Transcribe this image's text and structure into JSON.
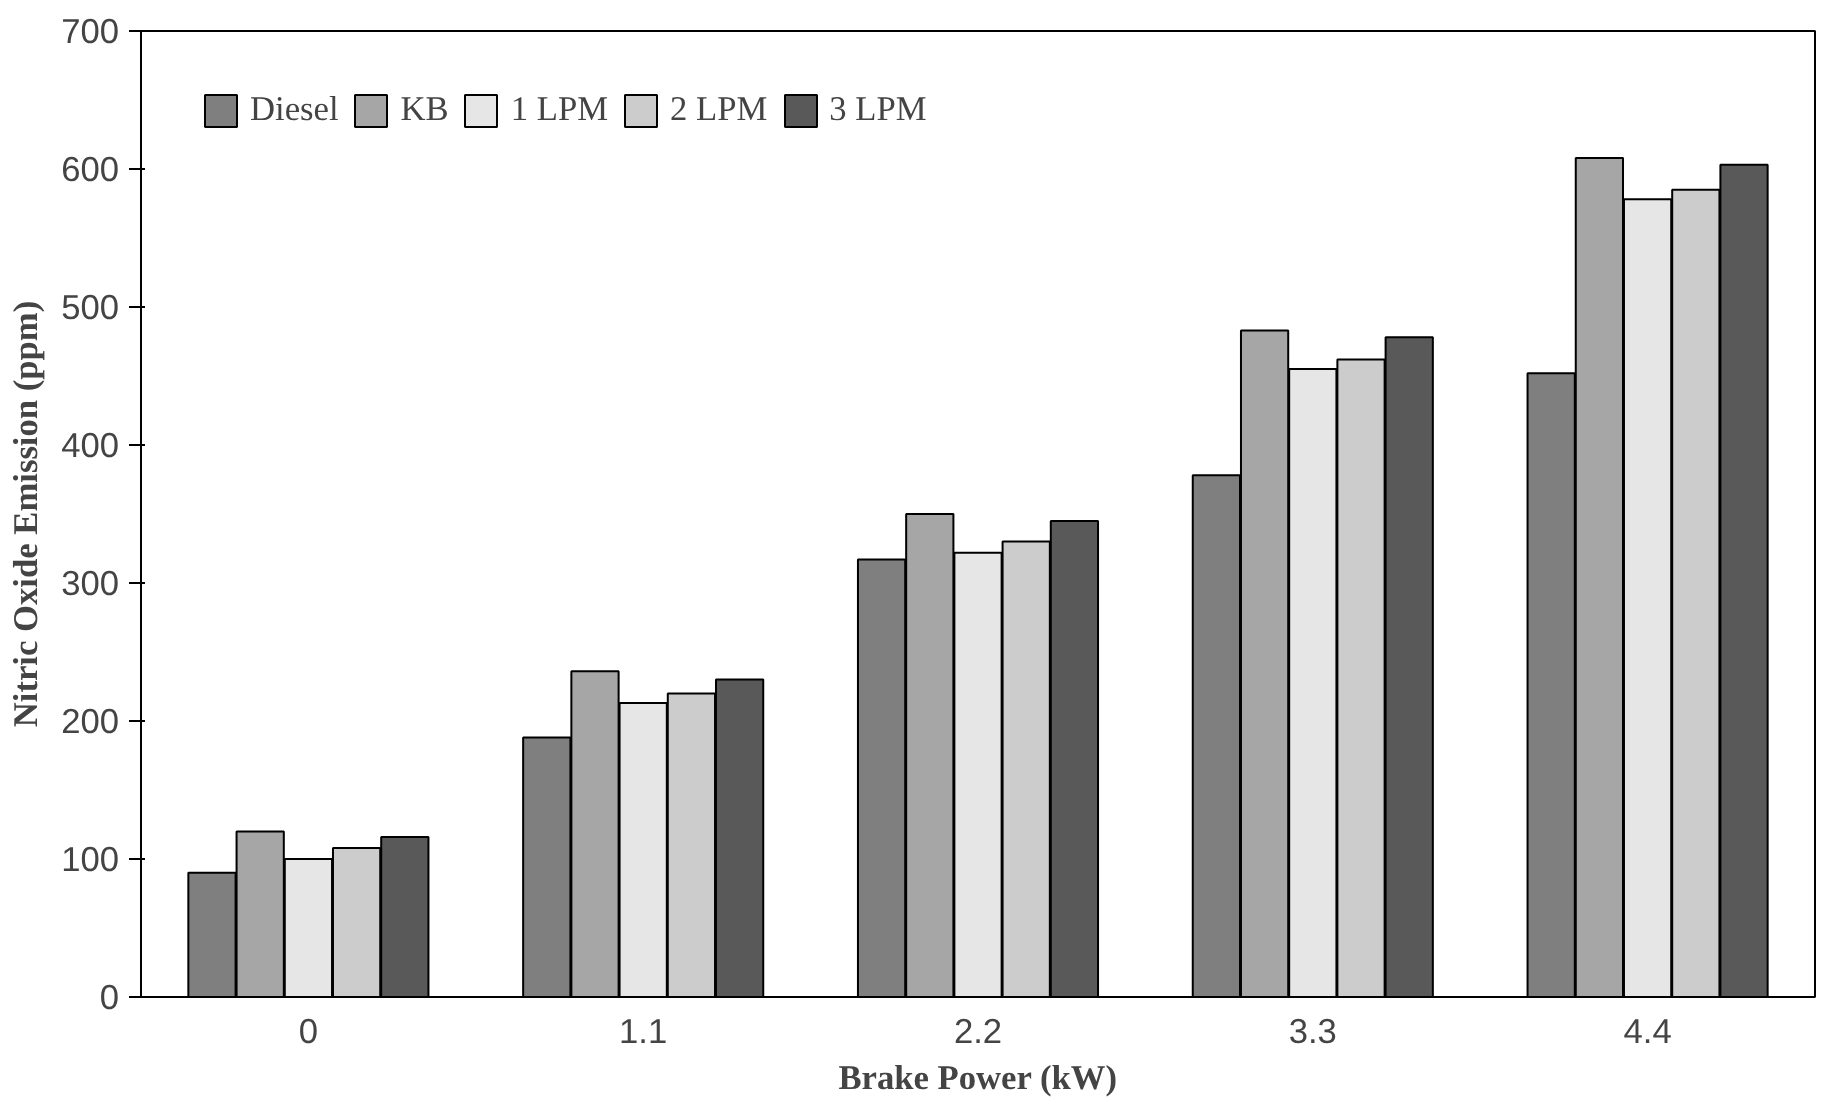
{
  "chart_data": {
    "type": "bar",
    "xlabel": "Brake Power (kW)",
    "ylabel": "Nitric Oxide Emission (ppm)",
    "categories": [
      "0",
      "1.1",
      "2.2",
      "3.3",
      "4.4"
    ],
    "series": [
      {
        "name": "Diesel",
        "color": "#7f7f7f",
        "values": [
          90,
          188,
          317,
          378,
          452
        ]
      },
      {
        "name": "KB",
        "color": "#a6a6a6",
        "values": [
          120,
          236,
          350,
          483,
          608
        ]
      },
      {
        "name": "1 LPM",
        "color": "#e6e6e6",
        "values": [
          100,
          213,
          322,
          455,
          578
        ]
      },
      {
        "name": "2 LPM",
        "color": "#cccccc",
        "values": [
          108,
          220,
          330,
          462,
          585
        ]
      },
      {
        "name": "3 LPM",
        "color": "#595959",
        "values": [
          116,
          230,
          345,
          478,
          603
        ]
      }
    ],
    "ylim": [
      0,
      700
    ],
    "yticks": [
      0,
      100,
      200,
      300,
      400,
      500,
      600,
      700
    ],
    "grid": false,
    "legend": "top left"
  }
}
